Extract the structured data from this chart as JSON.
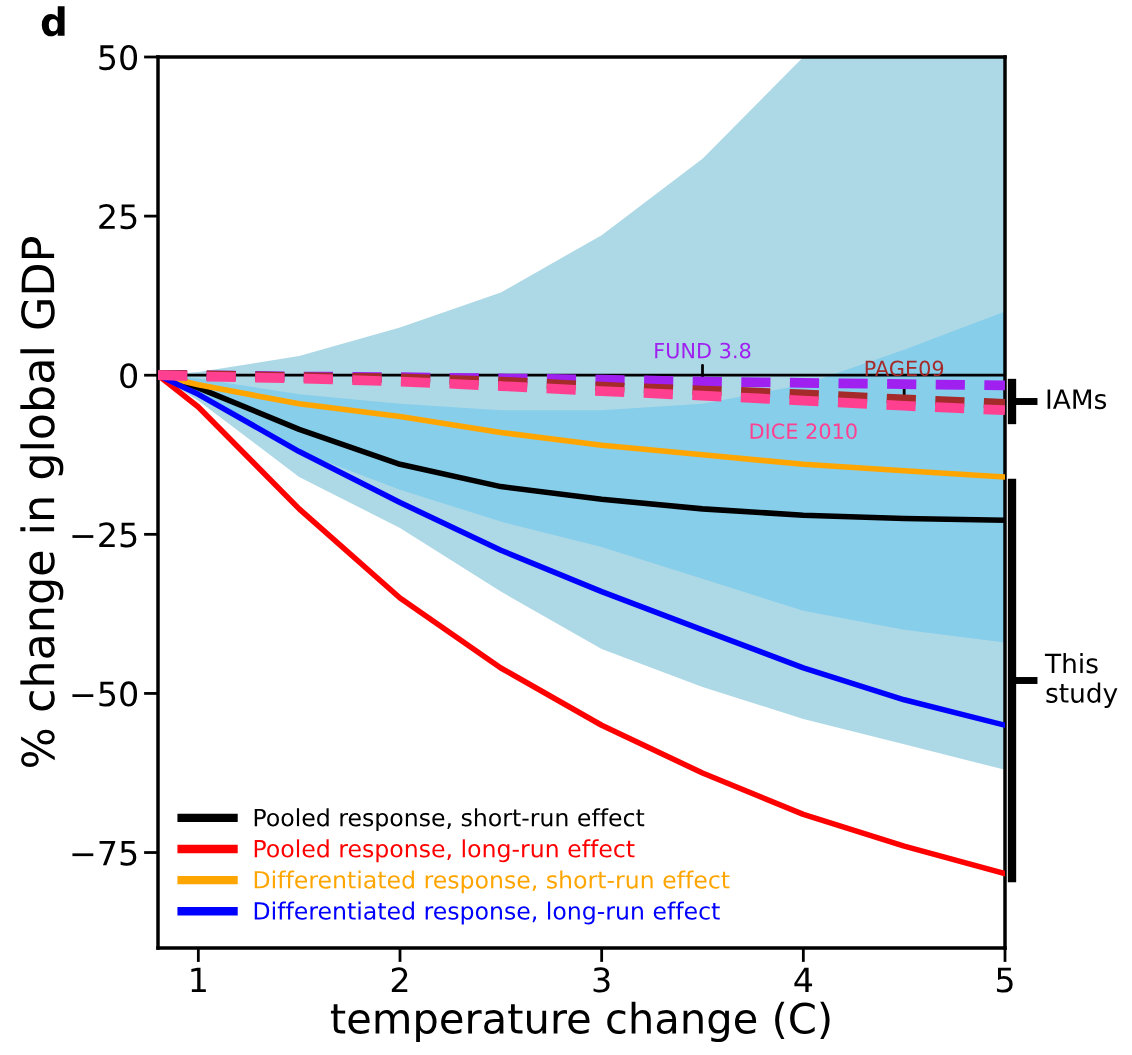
{
  "chart_data": {
    "type": "line",
    "xlabel": "temperature change (C)",
    "ylabel": "% change in global GDP",
    "xlim": [
      0.8,
      5
    ],
    "ylim": [
      -90,
      50
    ],
    "xticks": [
      1,
      2,
      3,
      4,
      5
    ],
    "yticks": [
      -75,
      -50,
      -25,
      0,
      25,
      50
    ],
    "grid": false,
    "legend": "bottom left",
    "x": [
      0.8,
      1,
      1.5,
      2,
      2.5,
      3,
      3.5,
      4,
      4.5,
      5
    ],
    "series": [
      {
        "color": "#add8e6",
        "values": [
          null,
          null,
          null,
          null,
          null,
          null,
          null,
          null,
          null,
          null
        ],
        "lower": [
          0,
          -4,
          -16,
          -24,
          -34,
          -43,
          -49,
          -54,
          -58,
          -62
        ],
        "upper": [
          0,
          0.5,
          3,
          7.5,
          13,
          22,
          34,
          50,
          50,
          50
        ]
      },
      {
        "color": "#87ceeb",
        "values": [
          null,
          null,
          null,
          null,
          null,
          null,
          null,
          null,
          null,
          null
        ],
        "lower": [
          0,
          -3,
          -12,
          -18,
          -23,
          -27,
          -32,
          -37,
          -40,
          -42
        ],
        "upper": [
          0,
          -0.5,
          -3,
          -4.5,
          -5.5,
          -5.5,
          -4.5,
          -1.5,
          4,
          10
        ]
      },
      {
        "name": "Pooled response, short-run effect",
        "color": "#000000",
        "values": [
          0,
          -2,
          -8.5,
          -14,
          -17.5,
          -19.5,
          -21,
          -22,
          -22.5,
          -22.8
        ]
      },
      {
        "name": "Pooled response, long-run effect",
        "color": "#ff0000",
        "values": [
          0,
          -5,
          -21,
          -35,
          -46,
          -55,
          -62.5,
          -69,
          -74,
          -78.3
        ]
      },
      {
        "name": "Differentiated response, short-run effect",
        "color": "#ffa500",
        "values": [
          0,
          -1.5,
          -4.5,
          -6.5,
          -9,
          -11,
          -12.5,
          -14,
          -15,
          -16
        ]
      },
      {
        "name": "Differentiated response, long-run effect",
        "color": "#0000ff",
        "values": [
          0,
          -3,
          -12,
          -20,
          -27.5,
          -34,
          -40,
          -46,
          -51,
          -55
        ]
      },
      {
        "name": "FUND 3.8",
        "color": "#a020f0",
        "line_style": "dashed",
        "values": [
          0,
          0,
          -0.2,
          -0.3,
          -0.5,
          -0.7,
          -1,
          -1.2,
          -1.4,
          -1.6
        ]
      },
      {
        "name": "PAGE09",
        "color": "#a52a2a",
        "line_style": "dashed",
        "values": [
          0,
          0,
          -0.3,
          -0.5,
          -1,
          -1.8,
          -2.4,
          -3,
          -3.8,
          -4.5
        ]
      },
      {
        "name": "DICE 2010",
        "color": "#ff4090",
        "line_style": "dashed",
        "values": [
          0,
          -0.2,
          -0.5,
          -1,
          -1.7,
          -2.5,
          -3.2,
          -4,
          -4.8,
          -5.5
        ]
      }
    ],
    "ref_lines": [
      {
        "axis": "y",
        "value": 0,
        "color": "#000000"
      }
    ],
    "annotations": [
      "d",
      "IAMs",
      "This study"
    ]
  }
}
